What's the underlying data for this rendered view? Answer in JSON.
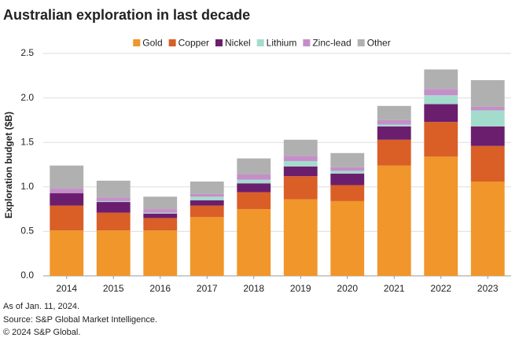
{
  "chart_data": {
    "type": "stacked_bar",
    "title": "Australian exploration in last decade",
    "y_label": "Exploration budget ($B)",
    "categories": [
      "2014",
      "2015",
      "2016",
      "2017",
      "2018",
      "2019",
      "2020",
      "2021",
      "2022",
      "2023"
    ],
    "series": [
      {
        "name": "Gold",
        "color": "#f0962a",
        "values": [
          0.51,
          0.51,
          0.51,
          0.66,
          0.75,
          0.86,
          0.84,
          1.24,
          1.34,
          1.06
        ]
      },
      {
        "name": "Copper",
        "color": "#d95f26",
        "values": [
          0.28,
          0.2,
          0.14,
          0.13,
          0.19,
          0.26,
          0.18,
          0.29,
          0.39,
          0.4
        ]
      },
      {
        "name": "Nickel",
        "color": "#6b1e6e",
        "values": [
          0.14,
          0.12,
          0.05,
          0.06,
          0.1,
          0.11,
          0.13,
          0.15,
          0.2,
          0.22
        ]
      },
      {
        "name": "Lithium",
        "color": "#a3dccd",
        "values": [
          0,
          0.01,
          0.01,
          0.04,
          0.04,
          0.06,
          0.03,
          0.02,
          0.1,
          0.18
        ]
      },
      {
        "name": "Zinc-lead",
        "color": "#c58ec9",
        "values": [
          0.05,
          0.04,
          0.04,
          0.03,
          0.06,
          0.06,
          0.04,
          0.05,
          0.07,
          0.04
        ]
      },
      {
        "name": "Other",
        "color": "#b0b0b0",
        "values": [
          0.26,
          0.19,
          0.14,
          0.14,
          0.18,
          0.18,
          0.16,
          0.16,
          0.22,
          0.3
        ]
      }
    ],
    "ylim": [
      0,
      2.5
    ],
    "yticks": [
      {
        "value": 0,
        "label": "0.0"
      },
      0.5,
      {
        "value": 1,
        "label": "1.0"
      },
      1.5,
      {
        "value": 2,
        "label": "2.0"
      },
      2.5
    ],
    "grid": true,
    "legend": "top",
    "notes": [
      "As of Jan. 11, 2024.",
      "Source: S&P Global Market Intelligence.",
      "© 2024 S&P Global."
    ]
  }
}
